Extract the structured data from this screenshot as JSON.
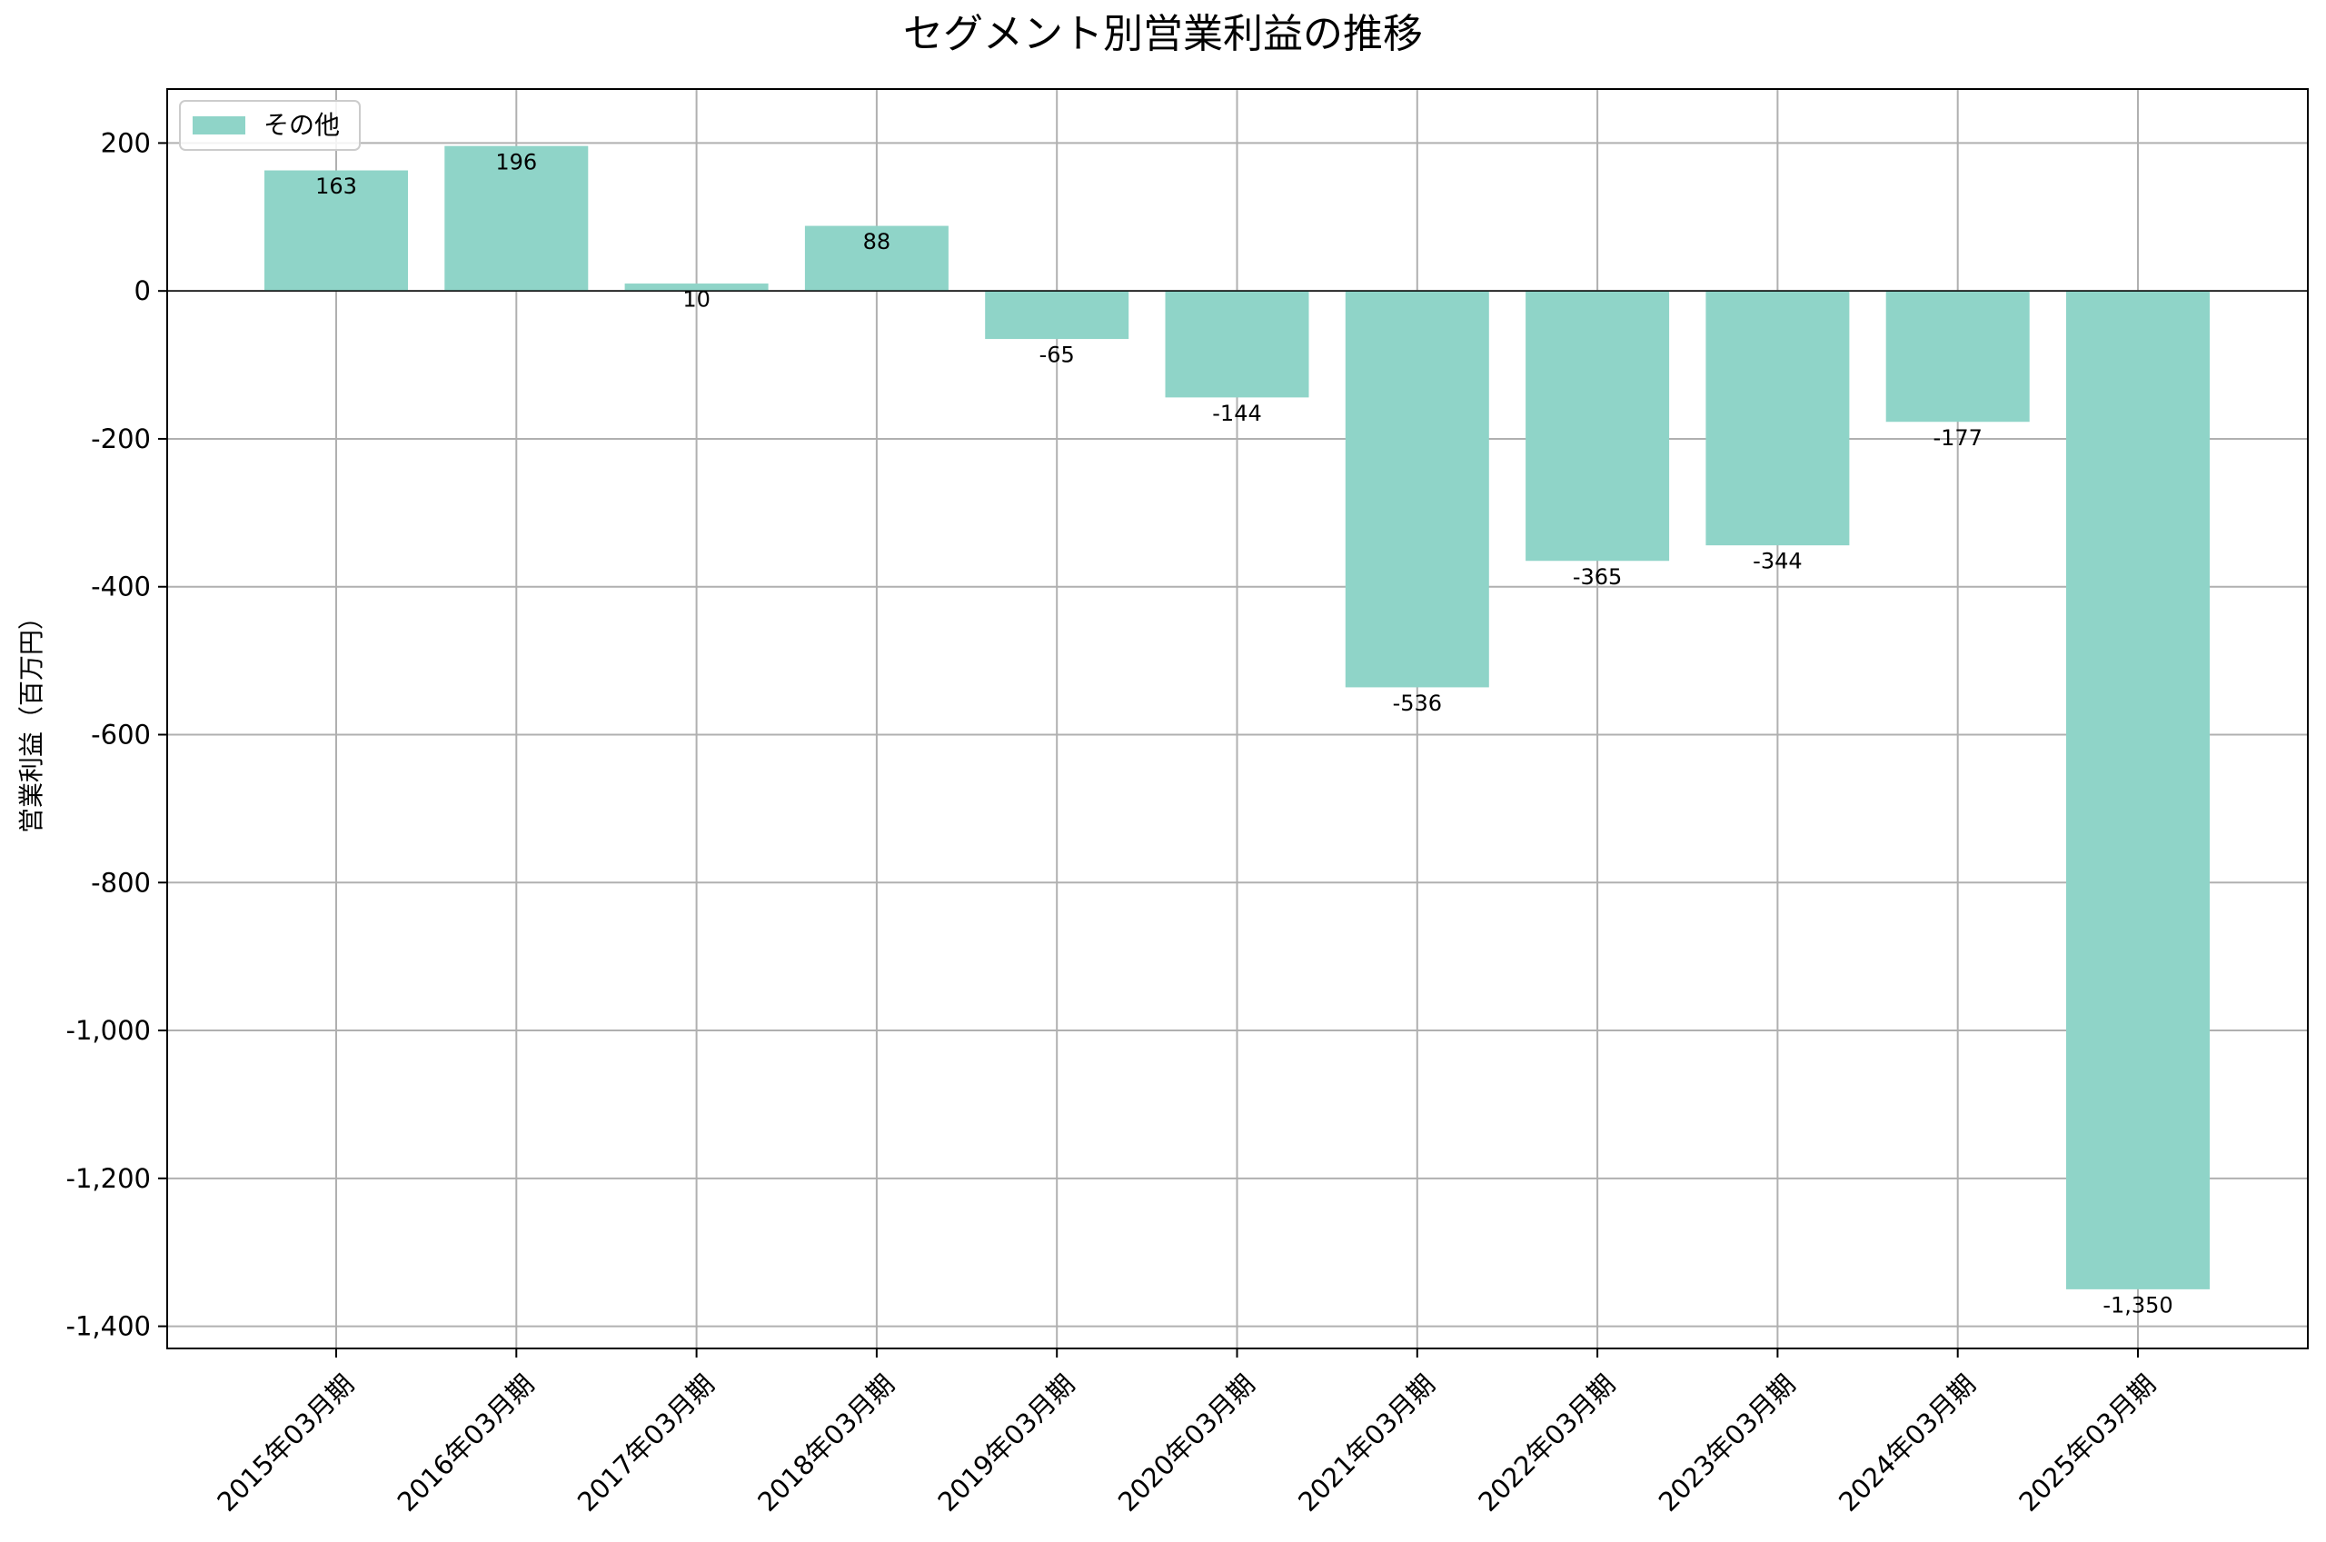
{
  "chart_data": {
    "type": "bar",
    "title": "セグメント別営業利益の推移",
    "xlabel": "",
    "ylabel": "営業利益（百万円）",
    "ylim": [
      -1430,
      273
    ],
    "yticks": [
      200,
      0,
      -200,
      -400,
      -600,
      -800,
      -1000,
      -1200,
      -1400
    ],
    "ytick_labels": [
      "200",
      "0",
      "-200",
      "-400",
      "-600",
      "-800",
      "-1,000",
      "-1,200",
      "-1,400"
    ],
    "grid": true,
    "legend_position": "top-left",
    "categories": [
      "2015年03月期",
      "2016年03月期",
      "2017年03月期",
      "2018年03月期",
      "2019年03月期",
      "2020年03月期",
      "2021年03月期",
      "2022年03月期",
      "2023年03月期",
      "2024年03月期",
      "2025年03月期"
    ],
    "series": [
      {
        "name": "その他",
        "color": "#8fd4c8",
        "values": [
          163,
          196,
          10,
          88,
          -65,
          -144,
          -536,
          -365,
          -344,
          -177,
          -1350
        ],
        "value_labels": [
          "163",
          "196",
          "10",
          "88",
          "-65",
          "-144",
          "-536",
          "-365",
          "-344",
          "-177",
          "-1,350"
        ]
      }
    ]
  }
}
